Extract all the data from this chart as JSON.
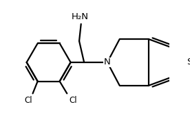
{
  "bg": "#ffffff",
  "bc": "#000000",
  "lw": 1.6,
  "fw": 2.76,
  "fh": 1.97,
  "dpi": 100,
  "NH2": "H₂N",
  "N": "N",
  "Cl1": "Cl",
  "Cl2": "Cl",
  "S": "S",
  "fs": 9.0
}
